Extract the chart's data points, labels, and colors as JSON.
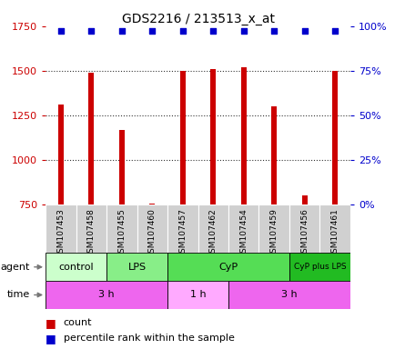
{
  "title": "GDS2216 / 213513_x_at",
  "samples": [
    "GSM107453",
    "GSM107458",
    "GSM107455",
    "GSM107460",
    "GSM107457",
    "GSM107462",
    "GSM107454",
    "GSM107459",
    "GSM107456",
    "GSM107461"
  ],
  "counts": [
    1310,
    1490,
    1165,
    755,
    1500,
    1510,
    1520,
    1300,
    800,
    1500
  ],
  "percentile_ranks": [
    100,
    100,
    100,
    100,
    100,
    100,
    100,
    100,
    100,
    100
  ],
  "ylim": [
    750,
    1750
  ],
  "yticks_left": [
    750,
    1000,
    1250,
    1500,
    1750
  ],
  "yticks_right": [
    0,
    25,
    50,
    75,
    100
  ],
  "agent_groups": [
    {
      "label": "control",
      "start": 0,
      "end": 2,
      "color": "#ccffcc"
    },
    {
      "label": "LPS",
      "start": 2,
      "end": 4,
      "color": "#88ee88"
    },
    {
      "label": "CyP",
      "start": 4,
      "end": 8,
      "color": "#55dd55"
    },
    {
      "label": "CyP plus LPS",
      "start": 8,
      "end": 10,
      "color": "#22bb22"
    }
  ],
  "time_groups": [
    {
      "label": "3 h",
      "start": 0,
      "end": 4,
      "color": "#ee66ee"
    },
    {
      "label": "1 h",
      "start": 4,
      "end": 6,
      "color": "#ffaaff"
    },
    {
      "label": "3 h",
      "start": 6,
      "end": 10,
      "color": "#ee66ee"
    }
  ],
  "bar_color": "#cc0000",
  "dot_color": "#0000cc",
  "bg_color": "#ffffff",
  "label_color_left": "#cc0000",
  "label_color_right": "#0000cc",
  "sample_bg_color": "#d0d0d0",
  "grid_color": "#333333",
  "legend_count_color": "#cc0000",
  "legend_pct_color": "#0000cc",
  "bar_width": 0.18
}
